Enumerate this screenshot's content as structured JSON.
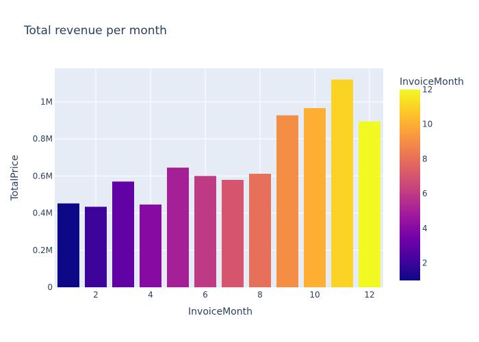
{
  "chart_data": {
    "type": "bar",
    "title": "Total revenue per month",
    "xlabel": "InvoiceMonth",
    "ylabel": "TotalPrice",
    "categories": [
      1,
      2,
      3,
      4,
      5,
      6,
      7,
      8,
      9,
      10,
      11,
      12
    ],
    "values": [
      452000,
      434000,
      570000,
      446000,
      645000,
      600000,
      579000,
      612000,
      927000,
      966000,
      1120000,
      894000
    ],
    "x_ticks": [
      2,
      4,
      6,
      8,
      10,
      12
    ],
    "y_ticks": [
      {
        "value": 0,
        "label": "0"
      },
      {
        "value": 200000,
        "label": "0.2M"
      },
      {
        "value": 400000,
        "label": "0.4M"
      },
      {
        "value": 600000,
        "label": "0.6M"
      },
      {
        "value": 800000,
        "label": "0.8M"
      },
      {
        "value": 1000000,
        "label": "1M"
      }
    ],
    "xlim": [
      0.5,
      12.5
    ],
    "ylim": [
      0,
      1180000
    ],
    "grid": true,
    "colorbar": {
      "title": "InvoiceMonth",
      "range": [
        1,
        12
      ],
      "ticks": [
        2,
        4,
        6,
        8,
        10,
        12
      ],
      "colorscale": [
        "#0d0887",
        "#46039f",
        "#7201a8",
        "#9c179e",
        "#bd3786",
        "#d8576b",
        "#ed7953",
        "#fb9f3a",
        "#fdca26",
        "#f0f921"
      ]
    },
    "colors": {
      "plot_background": "#e5ecf6",
      "gridline": "#ffffff",
      "text": "#2a3f5f"
    }
  }
}
